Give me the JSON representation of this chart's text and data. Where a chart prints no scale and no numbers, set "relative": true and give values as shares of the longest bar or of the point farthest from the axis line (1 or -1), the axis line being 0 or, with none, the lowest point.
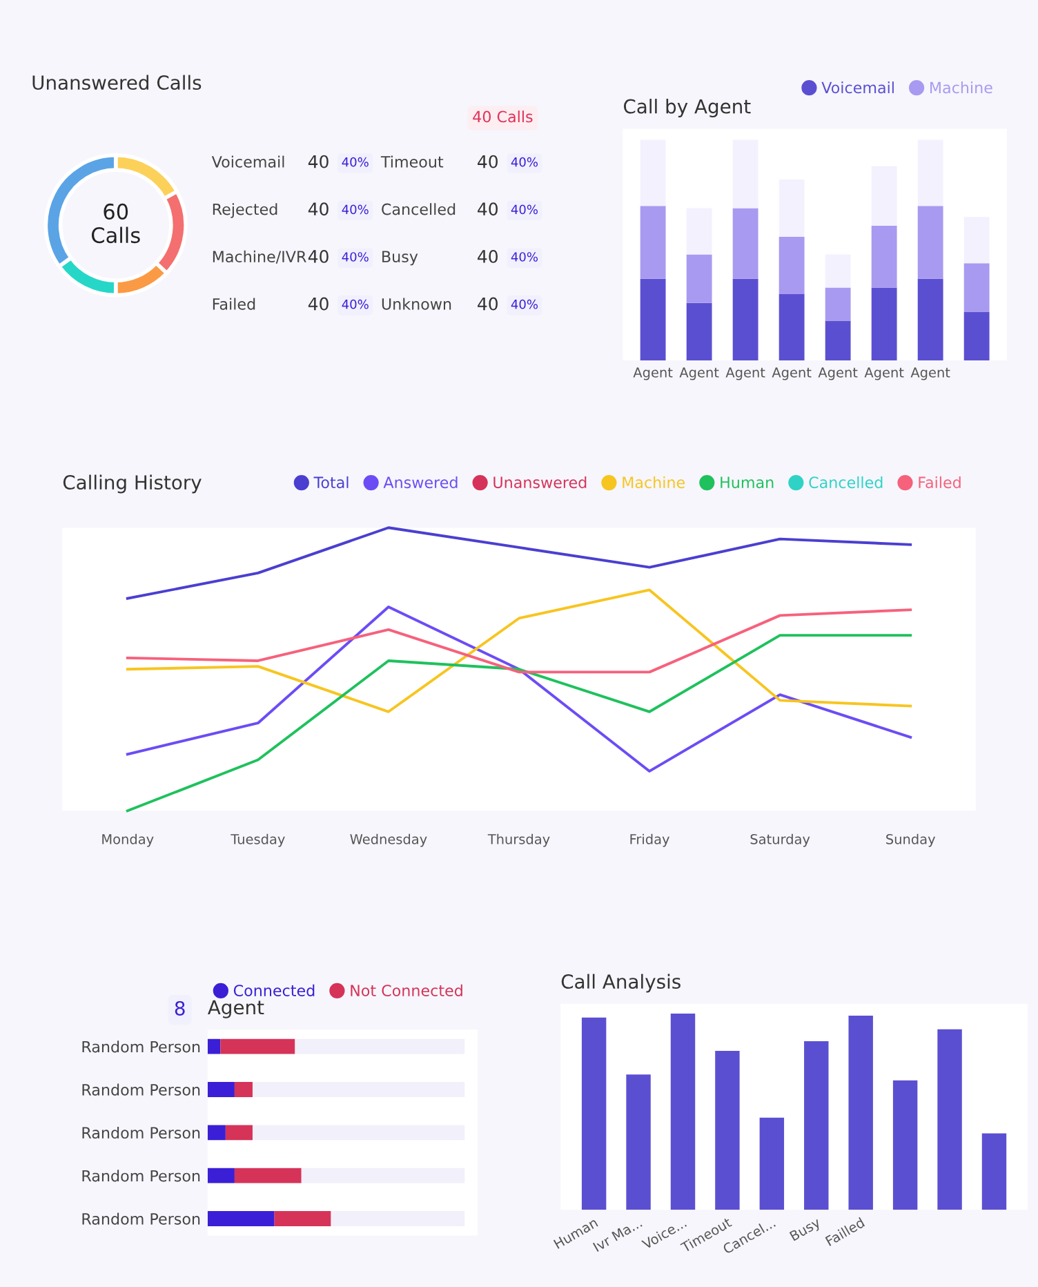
{
  "chart_data": [
    {
      "type": "donut",
      "title": "Unanswered Calls",
      "categories": [
        null,
        null,
        null,
        null,
        null
      ],
      "values": [
        17,
        20,
        13,
        15,
        35
      ],
      "colors": [
        "#fcd15a",
        "#f46f6f",
        "#fb9a45",
        "#26d7c8",
        "#5aa4e6"
      ],
      "annotations": [
        "60\nCalls",
        "40 Calls",
        "Voicemail",
        "40",
        "40%",
        "Rejected",
        "40",
        "40%",
        "Machine/IVR",
        "40",
        "40%",
        "Failed",
        "40",
        "40%",
        "Timeout",
        "40",
        "40%",
        "Cancelled",
        "40",
        "40%",
        "Busy",
        "40",
        "40%",
        "Unknown",
        "40",
        "40%"
      ]
    },
    {
      "type": "bar",
      "title": "Call by Agent",
      "stacked": true,
      "relative": true,
      "legend": "top right",
      "categories": [
        "Agent",
        "Agent",
        "Agent",
        "Agent",
        "Agent",
        "Agent",
        "Agent",
        null
      ],
      "series": [
        {
          "name": "Voicemail",
          "color": "#5b4fd1",
          "values": [
            0.37,
            0.26,
            0.37,
            0.3,
            0.18,
            0.33,
            0.37,
            0.22
          ]
        },
        {
          "name": "Machine",
          "color": "#a89af0",
          "values": [
            0.33,
            0.22,
            0.32,
            0.26,
            0.15,
            0.28,
            0.33,
            0.22
          ]
        },
        {
          "color": "#f3f1fd",
          "values": [
            0.3,
            0.21,
            0.31,
            0.26,
            0.15,
            0.27,
            0.3,
            0.21
          ]
        }
      ]
    },
    {
      "type": "line",
      "title": "Calling History",
      "relative": true,
      "legend": "top right",
      "categories": [
        "Monday",
        "Tuesday",
        "Wednesday",
        "Thursday",
        "Friday",
        "Saturday",
        "Sunday"
      ],
      "series": [
        {
          "name": "Total",
          "color": "#4a3fd0",
          "values": [
            0.75,
            0.84,
            1.0,
            0.93,
            0.86,
            0.96,
            0.94
          ]
        },
        {
          "name": "Answered",
          "color": "#6c4cf5",
          "values": [
            0.2,
            0.31,
            0.72,
            0.5,
            0.14,
            0.41,
            0.26
          ]
        },
        {
          "name": "Unanswered",
          "color": "#d6335a",
          "values": [
            null,
            null,
            null,
            null,
            null,
            null,
            null
          ]
        },
        {
          "name": "Machine",
          "color": "#f7c520",
          "values": [
            0.5,
            0.51,
            0.35,
            0.68,
            0.78,
            0.39,
            0.37
          ]
        },
        {
          "name": "Human",
          "color": "#1fc15d",
          "values": [
            0.0,
            0.18,
            0.53,
            0.5,
            0.35,
            0.62,
            0.62
          ]
        },
        {
          "name": "Cancelled",
          "color": "#2ed3c6",
          "values": [
            null,
            null,
            null,
            null,
            null,
            null,
            null
          ]
        },
        {
          "name": "Failed",
          "color": "#f6617c",
          "values": [
            0.54,
            0.53,
            0.64,
            0.49,
            0.49,
            0.69,
            0.71
          ]
        }
      ]
    },
    {
      "type": "bar",
      "title": "Agent",
      "orientation": "horizontal",
      "stacked": true,
      "relative": true,
      "legend": "top right",
      "annotations": [
        "8"
      ],
      "categories": [
        "Random Person",
        "Random Person",
        "Random Person",
        "Random Person",
        "Random Person"
      ],
      "series": [
        {
          "name": "Connected",
          "color": "#3a1fd6",
          "values": [
            0.05,
            0.105,
            0.07,
            0.105,
            0.26
          ]
        },
        {
          "name": "Not Connected",
          "color": "#d63358",
          "values": [
            0.29,
            0.07,
            0.105,
            0.26,
            0.22
          ]
        },
        {
          "color": "#f1f0fb",
          "values": [
            0.66,
            0.825,
            0.825,
            0.635,
            0.52
          ]
        }
      ]
    },
    {
      "type": "bar",
      "title": "Call Analysis",
      "relative": true,
      "categories": [
        "Human",
        "Ivr Ma...",
        "Voice...",
        "Timeout",
        "Cancel...",
        "Busy",
        "Failled",
        null,
        null,
        null
      ],
      "series": [
        {
          "color": "#5b4fd1",
          "values": [
            0.98,
            0.69,
            1.0,
            0.81,
            0.47,
            0.86,
            0.99,
            0.66,
            0.92,
            0.39
          ]
        }
      ]
    }
  ]
}
